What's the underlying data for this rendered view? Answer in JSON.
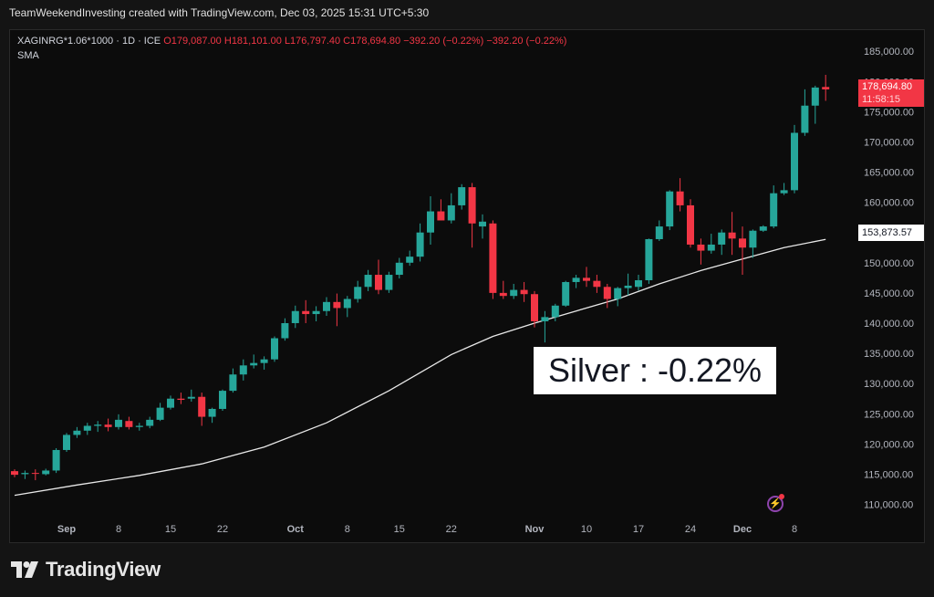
{
  "header": {
    "attribution": "TeamWeekendInvesting created with TradingView.com, Dec 03, 2025 15:31 UTC+5:30"
  },
  "legend": {
    "symbol": "XAGINRG*1.06*1000 · 1D · ICE",
    "open": "O179,087.00",
    "high": "H181,101.00",
    "low": "L176,797.40",
    "close": "C178,694.80",
    "change": "−392.20 (−0.22%)",
    "change_repeat": "−392.20 (−0.22%)",
    "indicator": "SMA"
  },
  "price_tags": {
    "last_price": "178,694.80",
    "countdown": "11:58:15",
    "sma_value": "153,873.57"
  },
  "annotation": "Silver : -0.22%",
  "footer": {
    "brand": "TradingView"
  },
  "colors": {
    "up": "#26a69a",
    "down": "#f23645",
    "sma": "#e8e8e8",
    "background": "#0c0c0c"
  },
  "icons": {
    "alert": "bolt-alert-icon",
    "logo": "tradingview-logo-icon"
  },
  "chart_data": {
    "type": "candlestick",
    "ylim": [
      106000,
      188500
    ],
    "y_ticks": [
      110000,
      115000,
      120000,
      125000,
      130000,
      135000,
      140000,
      145000,
      150000,
      155000,
      160000,
      165000,
      170000,
      175000,
      180000,
      185000
    ],
    "y_tick_labels": [
      "110,000.00",
      "115,000.00",
      "120,000.00",
      "125,000.00",
      "130,000.00",
      "135,000.00",
      "140,000.00",
      "145,000.00",
      "150,000.00",
      "155,000.00",
      "160,000.00",
      "165,000.00",
      "170,000.00",
      "175,000.00",
      "180,000.00",
      "185,000.00"
    ],
    "x_ticks": [
      {
        "label": "Sep",
        "index": 5,
        "bold": true
      },
      {
        "label": "8",
        "index": 10,
        "bold": false
      },
      {
        "label": "15",
        "index": 15,
        "bold": false
      },
      {
        "label": "22",
        "index": 20,
        "bold": false
      },
      {
        "label": "Oct",
        "index": 27,
        "bold": true
      },
      {
        "label": "8",
        "index": 32,
        "bold": false
      },
      {
        "label": "15",
        "index": 37,
        "bold": false
      },
      {
        "label": "22",
        "index": 42,
        "bold": false
      },
      {
        "label": "Nov",
        "index": 50,
        "bold": true
      },
      {
        "label": "10",
        "index": 55,
        "bold": false
      },
      {
        "label": "17",
        "index": 60,
        "bold": false
      },
      {
        "label": "24",
        "index": 65,
        "bold": false
      },
      {
        "label": "Dec",
        "index": 70,
        "bold": true
      },
      {
        "label": "8",
        "index": 75,
        "bold": false
      }
    ],
    "candles": [
      [
        115500,
        115800,
        114500,
        114900
      ],
      [
        115000,
        115600,
        114200,
        115200
      ],
      [
        115200,
        115800,
        114000,
        115100
      ],
      [
        115000,
        115900,
        114800,
        115600
      ],
      [
        115600,
        119300,
        115200,
        119000
      ],
      [
        119000,
        121800,
        118700,
        121500
      ],
      [
        121500,
        122800,
        121000,
        122200
      ],
      [
        122200,
        123500,
        121500,
        123000
      ],
      [
        123000,
        123800,
        122000,
        123200
      ],
      [
        123200,
        124200,
        122100,
        122800
      ],
      [
        122800,
        124900,
        122400,
        124000
      ],
      [
        123800,
        124500,
        122400,
        122800
      ],
      [
        122800,
        123500,
        122200,
        123000
      ],
      [
        123000,
        124500,
        122600,
        124000
      ],
      [
        124000,
        126800,
        123800,
        126000
      ],
      [
        126000,
        128000,
        125700,
        127500
      ],
      [
        127500,
        128500,
        126600,
        127300
      ],
      [
        127500,
        129000,
        127000,
        127800
      ],
      [
        127800,
        128500,
        123000,
        124500
      ],
      [
        124500,
        126000,
        123500,
        125800
      ],
      [
        125800,
        129000,
        125500,
        128800
      ],
      [
        128800,
        132500,
        128500,
        131500
      ],
      [
        131500,
        134000,
        130500,
        133000
      ],
      [
        133000,
        134800,
        132500,
        133400
      ],
      [
        133400,
        134500,
        132300,
        134000
      ],
      [
        134000,
        137800,
        133600,
        137500
      ],
      [
        137500,
        140800,
        137100,
        140000
      ],
      [
        140000,
        142900,
        139200,
        142000
      ],
      [
        142000,
        143800,
        140000,
        141500
      ],
      [
        141500,
        142800,
        140300,
        142000
      ],
      [
        142000,
        144300,
        141200,
        143500
      ],
      [
        143500,
        144900,
        139500,
        142500
      ],
      [
        142500,
        144500,
        141000,
        144000
      ],
      [
        144000,
        147000,
        143400,
        146000
      ],
      [
        146000,
        148800,
        145300,
        148000
      ],
      [
        148000,
        150500,
        144800,
        145500
      ],
      [
        145500,
        148500,
        145000,
        148000
      ],
      [
        148000,
        150800,
        147400,
        150000
      ],
      [
        150000,
        152000,
        149500,
        151000
      ],
      [
        151000,
        156500,
        150200,
        155000
      ],
      [
        155000,
        161000,
        153000,
        158500
      ],
      [
        158500,
        160500,
        157000,
        157000
      ],
      [
        157000,
        161500,
        156500,
        159500
      ],
      [
        159500,
        163000,
        158800,
        162500
      ],
      [
        162500,
        163200,
        152500,
        156500
      ],
      [
        156000,
        158000,
        154000,
        156800
      ],
      [
        156500,
        157000,
        144000,
        145000
      ],
      [
        145000,
        147000,
        144000,
        144500
      ],
      [
        144500,
        146500,
        144000,
        145500
      ],
      [
        145500,
        146800,
        143500,
        144800
      ],
      [
        144800,
        145300,
        139300,
        140300
      ],
      [
        140300,
        142000,
        136800,
        141000
      ],
      [
        141000,
        143200,
        140300,
        142900
      ],
      [
        142900,
        147000,
        142700,
        146800
      ],
      [
        146800,
        148000,
        145800,
        147500
      ],
      [
        147500,
        149300,
        146000,
        147000
      ],
      [
        147000,
        148000,
        145000,
        146000
      ],
      [
        146000,
        146500,
        142500,
        144000
      ],
      [
        144000,
        146000,
        142800,
        145800
      ],
      [
        145800,
        148200,
        144600,
        146200
      ],
      [
        146000,
        148000,
        145400,
        147100
      ],
      [
        147100,
        154000,
        146500,
        153900
      ],
      [
        153900,
        157000,
        153600,
        156000
      ],
      [
        156000,
        162000,
        155400,
        161800
      ],
      [
        161800,
        164000,
        158500,
        159500
      ],
      [
        159500,
        160500,
        152500,
        153000
      ],
      [
        153000,
        154000,
        149700,
        152000
      ],
      [
        152000,
        154800,
        151500,
        153000
      ],
      [
        153000,
        155500,
        151300,
        155000
      ],
      [
        155000,
        158400,
        151300,
        154000
      ],
      [
        154000,
        156000,
        148000,
        152500
      ],
      [
        152500,
        155500,
        150800,
        155300
      ],
      [
        155300,
        156200,
        155100,
        156000
      ],
      [
        156000,
        162800,
        155700,
        161500
      ],
      [
        161500,
        163200,
        161200,
        162000
      ],
      [
        162000,
        172800,
        161500,
        171500
      ],
      [
        171500,
        178700,
        171000,
        176000
      ],
      [
        176000,
        179300,
        173000,
        179000
      ],
      [
        179087,
        181101,
        176797.4,
        178694.8
      ]
    ],
    "sma": [
      [
        0,
        111500
      ],
      [
        6,
        113200
      ],
      [
        12,
        114800
      ],
      [
        18,
        116700
      ],
      [
        24,
        119500
      ],
      [
        30,
        123500
      ],
      [
        36,
        128800
      ],
      [
        42,
        134800
      ],
      [
        46,
        137800
      ],
      [
        50,
        140000
      ],
      [
        54,
        142000
      ],
      [
        58,
        144000
      ],
      [
        62,
        146500
      ],
      [
        66,
        148700
      ],
      [
        70,
        150600
      ],
      [
        74,
        152500
      ],
      [
        78,
        153873.57
      ]
    ]
  }
}
